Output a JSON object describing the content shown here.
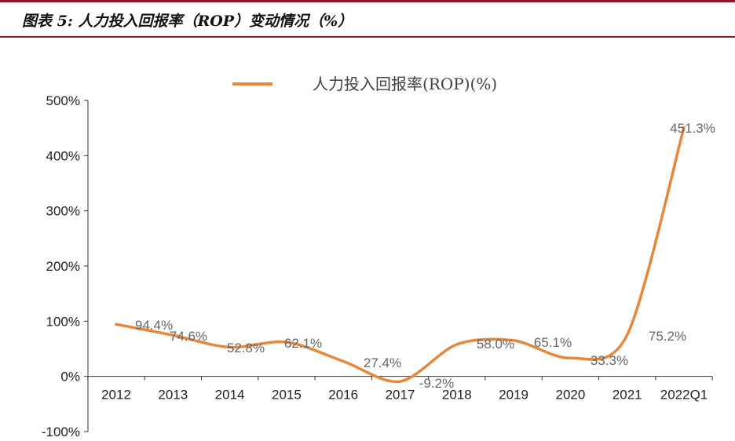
{
  "figure_title": "图表 5: 人力投入回报率（ROP）变动情况（%）",
  "colors": {
    "line": "#e8873a",
    "rule": "#8b1a2b",
    "axis": "#333333"
  },
  "chart_data": {
    "type": "line",
    "categories": [
      "2012",
      "2013",
      "2014",
      "2015",
      "2016",
      "2017",
      "2018",
      "2019",
      "2020",
      "2021",
      "2022Q1"
    ],
    "series": [
      {
        "name": "人力投入回报率(ROP)(%)",
        "values": [
          94.4,
          74.6,
          52.8,
          62.1,
          27.4,
          -9.2,
          58.0,
          65.1,
          33.3,
          75.2,
          451.3
        ]
      }
    ],
    "data_labels": [
      "94.4%",
      "74.6%",
      "52.8%",
      "62.1%",
      "27.4%",
      "-9.2%",
      "58.0%",
      "65.1%",
      "33.3%",
      "75.2%",
      "451.3%"
    ],
    "y_ticks": [
      "500%",
      "400%",
      "300%",
      "200%",
      "100%",
      "0%",
      "-100%"
    ],
    "y_tick_values": [
      500,
      400,
      300,
      200,
      100,
      0,
      -100
    ],
    "ylim": [
      -100,
      500
    ],
    "legend_position": "top",
    "grid": false,
    "smooth": true
  }
}
